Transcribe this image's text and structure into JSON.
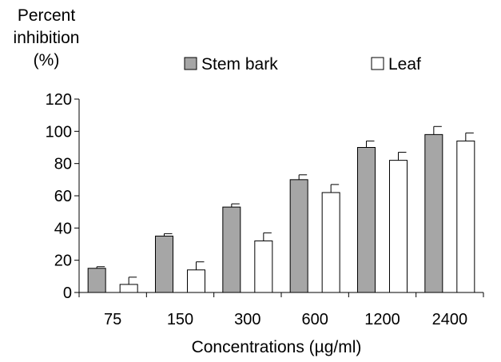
{
  "chart_data": {
    "type": "bar",
    "title": "",
    "ylabel_lines": [
      "Percent",
      "inhibition",
      "(%)"
    ],
    "xlabel": "Concentrations (µg/ml)",
    "categories": [
      "75",
      "150",
      "300",
      "600",
      "1200",
      "2400"
    ],
    "ylim": [
      0,
      120
    ],
    "yticks": [
      0,
      20,
      40,
      60,
      80,
      100,
      120
    ],
    "grid": false,
    "legend_position": "top",
    "series": [
      {
        "name": "Stem bark",
        "color": "#a6a6a6",
        "values": [
          15,
          35,
          53,
          70,
          90,
          98
        ],
        "errors": [
          1,
          1.5,
          2,
          3,
          4,
          5
        ]
      },
      {
        "name": "Leaf",
        "color": "#ffffff",
        "values": [
          5,
          14,
          32,
          62,
          82,
          94
        ],
        "errors": [
          4.5,
          5,
          5,
          5,
          5,
          5
        ]
      }
    ]
  }
}
